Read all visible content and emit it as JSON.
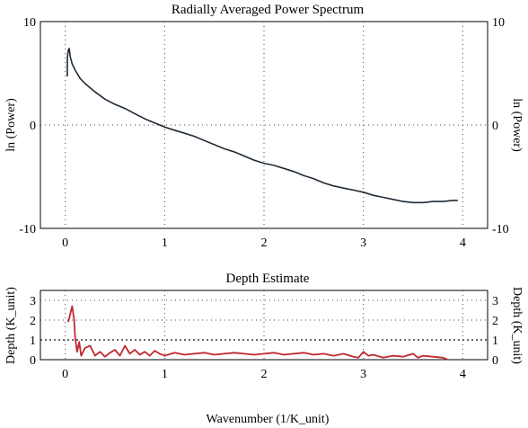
{
  "chart_data": [
    {
      "type": "line",
      "title": "Radially Averaged Power Spectrum",
      "xlabel": "",
      "ylabel": "ln (Power)",
      "ylabel_right": "ln (Power)",
      "xlim": [
        -0.25,
        4.25
      ],
      "ylim": [
        -10,
        10
      ],
      "xticks": [
        "0",
        "1",
        "2",
        "3",
        "4"
      ],
      "yticks": [
        "10",
        "0",
        "-10"
      ],
      "grid": "dotted",
      "series": [
        {
          "color": "#1f2a36",
          "x": [
            0.02,
            0.022,
            0.03,
            0.04,
            0.05,
            0.07,
            0.1,
            0.15,
            0.2,
            0.3,
            0.4,
            0.5,
            0.6,
            0.7,
            0.8,
            0.9,
            1.0,
            1.1,
            1.2,
            1.3,
            1.4,
            1.5,
            1.6,
            1.7,
            1.8,
            1.9,
            2.0,
            2.1,
            2.2,
            2.3,
            2.4,
            2.5,
            2.6,
            2.7,
            2.8,
            2.9,
            3.0,
            3.1,
            3.2,
            3.3,
            3.4,
            3.5,
            3.6,
            3.7,
            3.8,
            3.9,
            3.95
          ],
          "y": [
            4.7,
            6.6,
            7.2,
            7.4,
            6.6,
            5.9,
            5.3,
            4.5,
            4.0,
            3.2,
            2.5,
            2.0,
            1.6,
            1.1,
            0.6,
            0.2,
            -0.2,
            -0.5,
            -0.8,
            -1.1,
            -1.5,
            -1.9,
            -2.3,
            -2.6,
            -3.0,
            -3.4,
            -3.7,
            -3.9,
            -4.2,
            -4.5,
            -4.9,
            -5.2,
            -5.6,
            -5.9,
            -6.1,
            -6.3,
            -6.5,
            -6.8,
            -7.0,
            -7.2,
            -7.4,
            -7.5,
            -7.5,
            -7.4,
            -7.4,
            -7.3,
            -7.3
          ]
        }
      ]
    },
    {
      "type": "line",
      "title": "Depth Estimate",
      "xlabel": "Wavenumber (1/K_unit)",
      "ylabel": "Depth (K_unit)",
      "ylabel_right": "Depth (K_unit)",
      "xlim": [
        -0.25,
        4.25
      ],
      "ylim": [
        0,
        3.5
      ],
      "xticks": [
        "0",
        "1",
        "2",
        "3",
        "4"
      ],
      "yticks": [
        "3",
        "2",
        "1",
        "0"
      ],
      "reference_line": 1,
      "grid": "dotted",
      "series": [
        {
          "color": "#c0282d",
          "x": [
            0.03,
            0.05,
            0.07,
            0.09,
            0.1,
            0.12,
            0.14,
            0.16,
            0.2,
            0.25,
            0.3,
            0.35,
            0.4,
            0.45,
            0.5,
            0.55,
            0.6,
            0.65,
            0.7,
            0.75,
            0.8,
            0.85,
            0.9,
            0.95,
            1.0,
            1.1,
            1.2,
            1.3,
            1.4,
            1.5,
            1.6,
            1.7,
            1.8,
            1.9,
            2.0,
            2.1,
            2.2,
            2.3,
            2.4,
            2.5,
            2.6,
            2.7,
            2.8,
            2.9,
            2.95,
            3.0,
            3.05,
            3.1,
            3.2,
            3.3,
            3.4,
            3.5,
            3.55,
            3.6,
            3.7,
            3.8,
            3.85
          ],
          "y": [
            1.9,
            2.3,
            2.7,
            2.0,
            1.1,
            0.4,
            0.9,
            0.2,
            0.6,
            0.7,
            0.2,
            0.4,
            0.15,
            0.35,
            0.5,
            0.2,
            0.7,
            0.3,
            0.5,
            0.25,
            0.4,
            0.2,
            0.45,
            0.3,
            0.2,
            0.35,
            0.25,
            0.3,
            0.35,
            0.25,
            0.3,
            0.35,
            0.3,
            0.25,
            0.3,
            0.35,
            0.25,
            0.3,
            0.35,
            0.25,
            0.3,
            0.2,
            0.3,
            0.15,
            0.1,
            0.4,
            0.2,
            0.25,
            0.1,
            0.2,
            0.15,
            0.3,
            0.1,
            0.2,
            0.15,
            0.1,
            0.0
          ]
        }
      ]
    }
  ]
}
